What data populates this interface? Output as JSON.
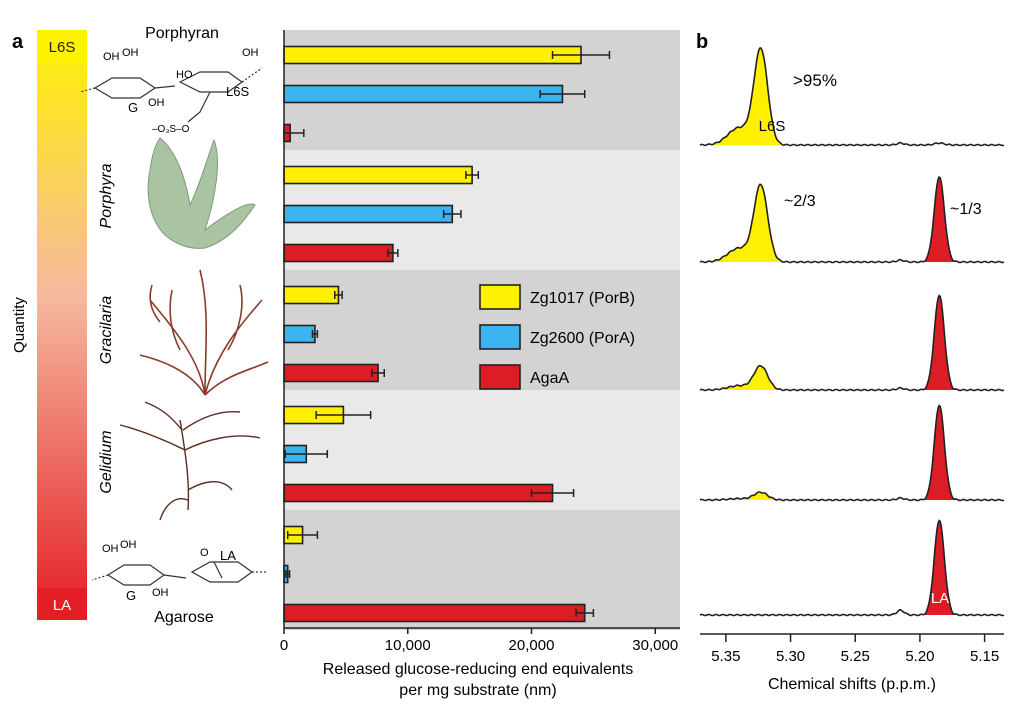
{
  "panel_a": {
    "letter": "a",
    "gradient_top_label": "L6S",
    "gradient_bottom_label": "LA",
    "quantity_label": "Quantity",
    "porphyran_label": "Porphyran",
    "agarose_label": "Agarose",
    "struct_top": {
      "oh1": "OH",
      "oh2": "OH",
      "oh3": "OH",
      "ho1": "HO",
      "g": "G",
      "l6s": "L6S",
      "oh4": "OH",
      "sulfate": "–O₃S–O"
    },
    "struct_bottom": {
      "oh1": "OH",
      "oh2": "OH",
      "o": "O",
      "la": "LA",
      "g": "G",
      "oh3": "OH"
    },
    "species": [
      "Porphyra",
      "Gracilaria",
      "Gelidium"
    ],
    "colors": {
      "yellow": "#ffef00",
      "blue": "#3bb3ee",
      "red": "#dd1d26",
      "band_dark": "#d3d3d3",
      "band_light": "#e9e9e9"
    }
  },
  "panel_b": {
    "letter": "b",
    "annotations": [
      ">95%",
      "L6S",
      "~2/3",
      "~1/3",
      "LA"
    ],
    "xlabel": "Chemical shifts (p.p.m.)",
    "ticks": [
      "5.35",
      "5.30",
      "5.25",
      "5.20",
      "5.15"
    ]
  },
  "chart_data": [
    {
      "type": "bar",
      "orientation": "horizontal",
      "categories": [
        "Porphyran",
        "Porphyra",
        "Gracilaria",
        "Gelidium",
        "Agarose"
      ],
      "series": [
        {
          "name": "Zg1017 (PorB)",
          "color": "#ffef00",
          "values": [
            24000,
            15200,
            4400,
            4800,
            1500
          ],
          "errors": [
            2300,
            500,
            300,
            2200,
            1200
          ]
        },
        {
          "name": "Zg2600 (PorA)",
          "color": "#3bb3ee",
          "values": [
            22500,
            13600,
            2500,
            1800,
            300
          ],
          "errors": [
            1800,
            700,
            200,
            1700,
            150
          ]
        },
        {
          "name": "AgaA",
          "color": "#dd1d26",
          "values": [
            500,
            8800,
            7600,
            21700,
            24300
          ],
          "errors": [
            1100,
            400,
            500,
            1700,
            700
          ]
        }
      ],
      "xlabel": "Released glucose-reducing end equivalents per mg substrate (nm)",
      "xticks": [
        "0",
        "10,000",
        "20,000",
        "30,000"
      ],
      "xlim": [
        0,
        32000
      ]
    },
    {
      "type": "line",
      "title": "",
      "xlabel": "Chemical shifts (p.p.m.)",
      "xlim": [
        5.37,
        5.135
      ],
      "xaxis_reversed": true,
      "series_note": "five stacked NMR spectra, top to bottom: Porphyran, Porphyra, Gracilaria, Gelidium, Agarose",
      "peaks": [
        {
          "L6S_relative": 1.0,
          "LA_relative": 0.02
        },
        {
          "L6S_relative": 0.8,
          "LA_relative": 0.9
        },
        {
          "L6S_relative": 0.25,
          "LA_relative": 1.0
        },
        {
          "L6S_relative": 0.08,
          "LA_relative": 1.0
        },
        {
          "L6S_relative": 0.0,
          "LA_relative": 1.0
        }
      ]
    }
  ]
}
